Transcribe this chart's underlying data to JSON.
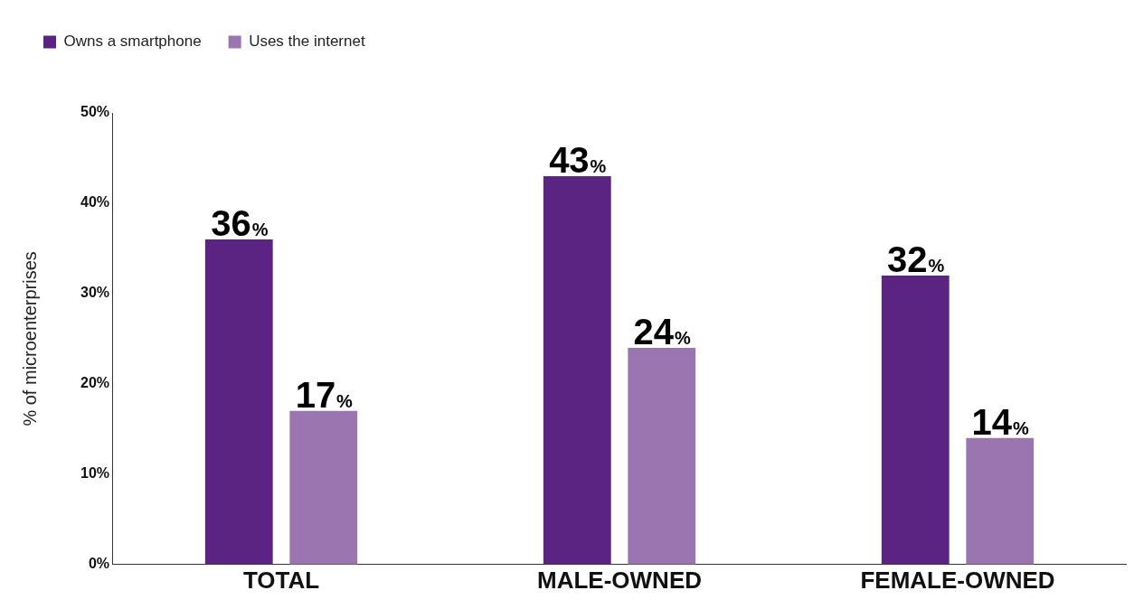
{
  "chart_data": {
    "type": "bar",
    "ylabel": "% of microenterprises",
    "categories": [
      "TOTAL",
      "MALE-OWNED",
      "FEMALE-OWNED"
    ],
    "series": [
      {
        "name": "Owns a smartphone",
        "color": "#5b2483",
        "values": [
          36,
          43,
          32
        ],
        "value_labels": [
          "36%",
          "43%",
          "32%"
        ]
      },
      {
        "name": "Uses the internet",
        "color": "#9a75b0",
        "values": [
          17,
          24,
          14
        ],
        "value_labels": [
          "17%",
          "24%",
          "14%"
        ]
      }
    ],
    "ylim": [
      0,
      50
    ],
    "yticks": [
      {
        "value": 0,
        "label": "0%"
      },
      {
        "value": 10,
        "label": "10%"
      },
      {
        "value": 20,
        "label": "20%"
      },
      {
        "value": 30,
        "label": "30%"
      },
      {
        "value": 40,
        "label": "40%"
      },
      {
        "value": 50,
        "label": "50%"
      }
    ],
    "grid": false,
    "legend": "top left"
  }
}
